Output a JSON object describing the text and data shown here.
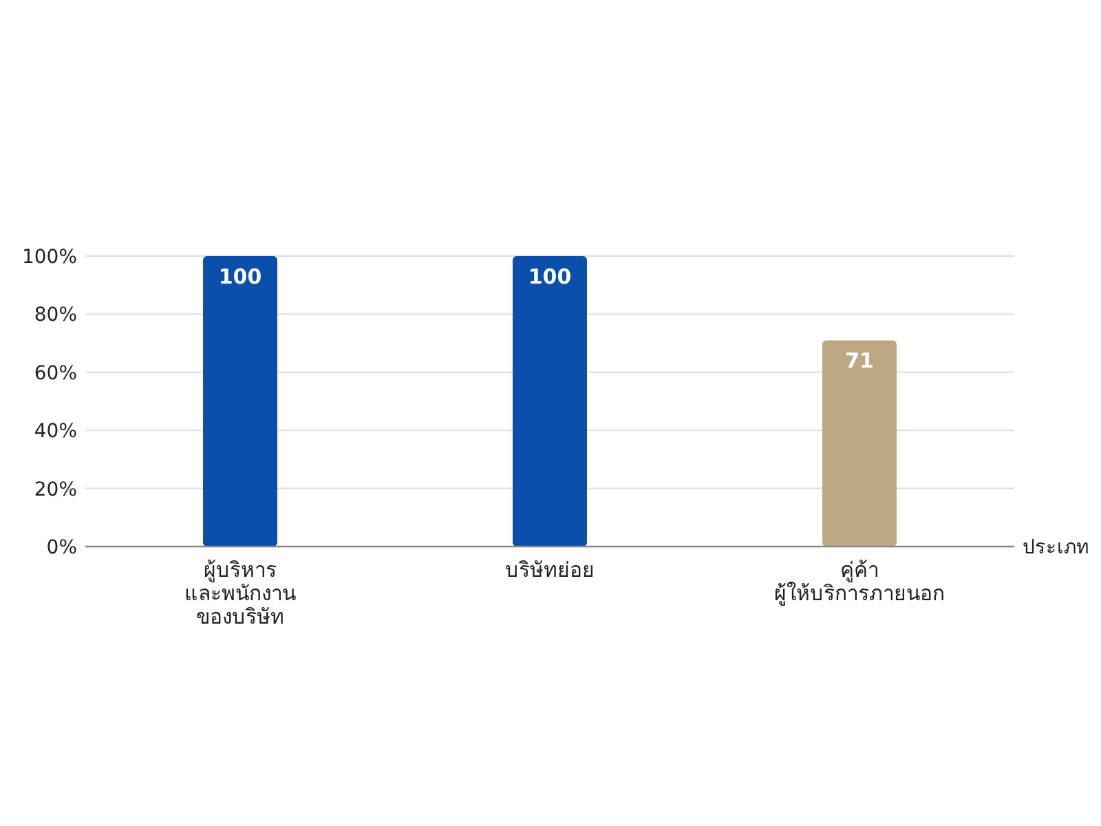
{
  "chart_data": {
    "type": "bar",
    "xlabel": "ประเภท",
    "categories": [
      "ผู้บริหาร\nและพนักงาน\nของบริษัท",
      "บริษัทย่อย",
      "คู่ค้า\nผู้ให้บริการภายนอก"
    ],
    "values": [
      100,
      100,
      71
    ],
    "colors": [
      "#0a50aa",
      "#0a50aa",
      "#bea884"
    ],
    "ylim": [
      0,
      100
    ],
    "yticks": [
      {
        "value": 0,
        "label": "0%"
      },
      {
        "value": 20,
        "label": "20%"
      },
      {
        "value": 40,
        "label": "40%"
      },
      {
        "value": 60,
        "label": "60%"
      },
      {
        "value": 80,
        "label": "80%"
      },
      {
        "value": 100,
        "label": "100%"
      }
    ],
    "grid": "y",
    "data_labels": true
  }
}
